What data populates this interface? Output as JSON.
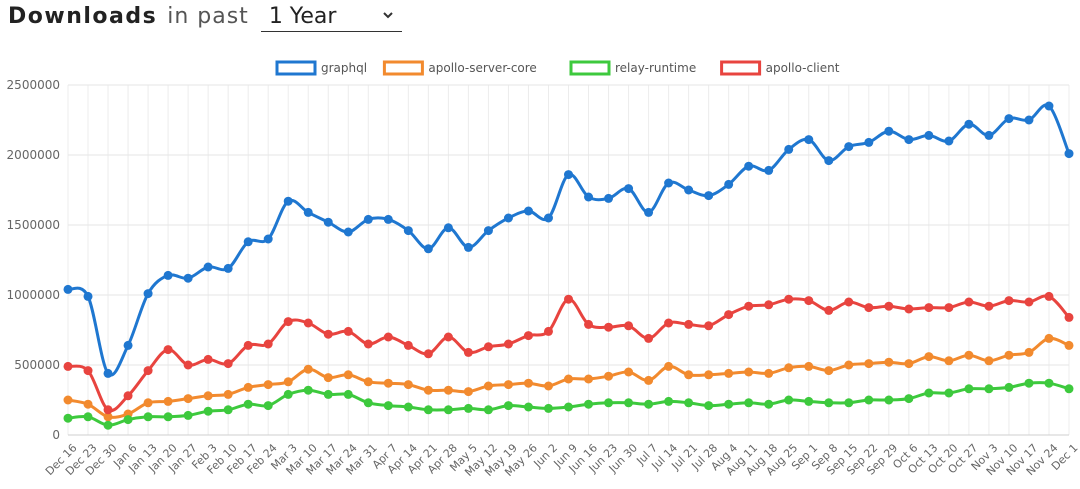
{
  "header": {
    "title_strong": "Downloads",
    "title_light": "in past",
    "period": "1 Year",
    "dropdown_icon": "chevron-down-icon"
  },
  "chart_data": {
    "type": "line",
    "legend_position": "top-center",
    "grid": true,
    "ylim": [
      0,
      2500000
    ],
    "yticks": [
      "0",
      "500000",
      "1000000",
      "1500000",
      "2000000",
      "2500000"
    ],
    "categories": [
      "Dec 16",
      "Dec 23",
      "Dec 30",
      "Jan 6",
      "Jan 13",
      "Jan 20",
      "Jan 27",
      "Feb 3",
      "Feb 10",
      "Feb 17",
      "Feb 24",
      "Mar 3",
      "Mar 10",
      "Mar 17",
      "Mar 24",
      "Mar 31",
      "Apr 7",
      "Apr 14",
      "Apr 21",
      "Apr 28",
      "May 5",
      "May 12",
      "May 19",
      "May 26",
      "Jun 2",
      "Jun 9",
      "Jun 16",
      "Jun 23",
      "Jun 30",
      "Jul 7",
      "Jul 14",
      "Jul 21",
      "Jul 28",
      "Aug 4",
      "Aug 11",
      "Aug 18",
      "Aug 25",
      "Sep 1",
      "Sep 8",
      "Sep 15",
      "Sep 22",
      "Sep 29",
      "Oct 6",
      "Oct 13",
      "Oct 20",
      "Oct 27",
      "Nov 3",
      "Nov 10",
      "Nov 17",
      "Nov 24",
      "Dec 1"
    ],
    "series": [
      {
        "name": "graphql",
        "color": "#1f77d0",
        "values": [
          1040000,
          990000,
          440000,
          640000,
          1010000,
          1140000,
          1120000,
          1200000,
          1190000,
          1380000,
          1400000,
          1670000,
          1590000,
          1520000,
          1450000,
          1540000,
          1540000,
          1460000,
          1330000,
          1480000,
          1340000,
          1460000,
          1550000,
          1600000,
          1550000,
          1860000,
          1700000,
          1690000,
          1760000,
          1590000,
          1800000,
          1750000,
          1710000,
          1790000,
          1920000,
          1890000,
          2040000,
          2110000,
          1960000,
          2060000,
          2090000,
          2170000,
          2110000,
          2140000,
          2100000,
          2220000,
          2140000,
          2260000,
          2250000,
          2350000,
          2010000
        ]
      },
      {
        "name": "apollo-server-core",
        "color": "#f28a2e",
        "values": [
          250000,
          220000,
          130000,
          150000,
          230000,
          240000,
          260000,
          280000,
          290000,
          340000,
          360000,
          380000,
          470000,
          410000,
          430000,
          380000,
          370000,
          360000,
          320000,
          320000,
          310000,
          350000,
          360000,
          370000,
          350000,
          400000,
          400000,
          420000,
          450000,
          390000,
          490000,
          430000,
          430000,
          440000,
          450000,
          440000,
          480000,
          490000,
          460000,
          500000,
          510000,
          520000,
          510000,
          560000,
          530000,
          570000,
          530000,
          570000,
          590000,
          690000,
          640000
        ]
      },
      {
        "name": "relay-runtime",
        "color": "#3dc93d",
        "values": [
          120000,
          130000,
          70000,
          110000,
          130000,
          130000,
          140000,
          170000,
          180000,
          220000,
          210000,
          290000,
          320000,
          290000,
          290000,
          230000,
          210000,
          200000,
          180000,
          180000,
          190000,
          180000,
          210000,
          200000,
          190000,
          200000,
          220000,
          230000,
          230000,
          220000,
          240000,
          230000,
          210000,
          220000,
          230000,
          220000,
          250000,
          240000,
          230000,
          230000,
          250000,
          250000,
          260000,
          300000,
          300000,
          330000,
          330000,
          340000,
          370000,
          370000,
          330000
        ]
      },
      {
        "name": "apollo-client",
        "color": "#e8443f",
        "values": [
          490000,
          460000,
          180000,
          280000,
          460000,
          610000,
          500000,
          540000,
          510000,
          640000,
          650000,
          810000,
          800000,
          720000,
          740000,
          650000,
          700000,
          640000,
          580000,
          700000,
          590000,
          630000,
          650000,
          710000,
          740000,
          970000,
          790000,
          770000,
          780000,
          690000,
          800000,
          790000,
          780000,
          860000,
          920000,
          930000,
          970000,
          960000,
          890000,
          950000,
          910000,
          920000,
          900000,
          910000,
          910000,
          950000,
          920000,
          960000,
          950000,
          990000,
          840000
        ]
      }
    ]
  }
}
